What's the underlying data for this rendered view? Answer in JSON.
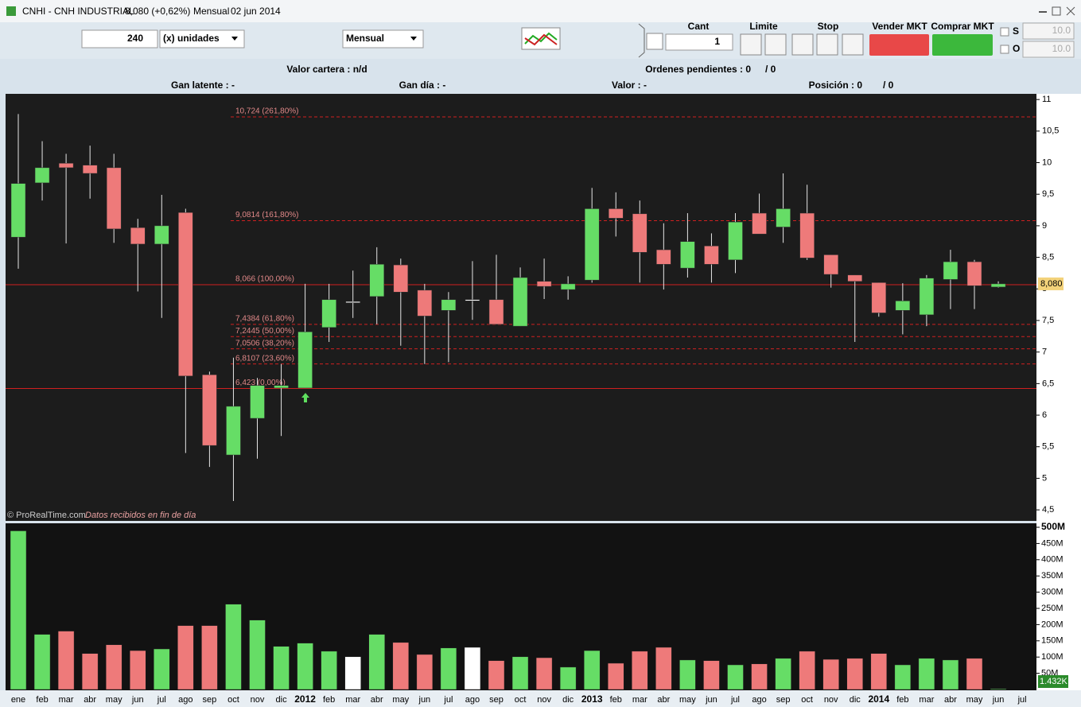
{
  "window": {
    "symbol": "CNHI - CNH INDUSTRIAL",
    "quote": "8,080 (+0,62%)",
    "period": "Mensual",
    "date": "02 jun 2014"
  },
  "toolbar": {
    "quantity": "240",
    "unit": "(x) unidades",
    "period": "Mensual",
    "cant_label": "Cant",
    "cant": "1",
    "limit_label": "Limite",
    "stop_label": "Stop",
    "sell": "Vender MKT",
    "buy": "Comprar MKT",
    "s_label": "S",
    "s_value": "10.0",
    "o_label": "O",
    "o_value": "10.0"
  },
  "info": {
    "portfolio": "Valor cartera : n/d",
    "pending": "Ordenes pendientes : 0",
    "pending_total": "/ 0",
    "unrealized": "Gan latente : -",
    "day_gain": "Gan día : -",
    "value": "Valor : -",
    "position": "Posición : 0",
    "position_total": "/ 0"
  },
  "chart_data": [
    {
      "type": "candlestick",
      "categories": [
        "ene",
        "feb",
        "mar",
        "abr",
        "may",
        "jun",
        "jul",
        "ago",
        "sep",
        "oct",
        "nov",
        "dic",
        "2012",
        "feb",
        "mar",
        "abr",
        "may",
        "jun",
        "jul",
        "ago",
        "sep",
        "oct",
        "nov",
        "dic",
        "2013",
        "feb",
        "mar",
        "abr",
        "may",
        "jun",
        "jul",
        "ago",
        "sep",
        "oct",
        "nov",
        "dic",
        "2014",
        "feb",
        "mar",
        "abr",
        "may",
        "jun",
        "jul"
      ],
      "open": [
        8.82,
        9.68,
        9.99,
        9.96,
        9.92,
        8.97,
        8.71,
        9.21,
        6.64,
        5.37,
        5.95,
        6.43,
        6.43,
        7.39,
        7.8,
        7.88,
        8.38,
        7.98,
        7.66,
        7.83,
        7.83,
        7.41,
        8.12,
        7.99,
        8.14,
        9.27,
        9.19,
        8.62,
        8.33,
        8.68,
        8.46,
        9.2,
        8.98,
        9.2,
        8.54,
        8.22,
        8.1,
        7.66,
        7.59,
        8.15,
        8.43,
        8.03,
        null
      ],
      "high": [
        10.77,
        10.34,
        10.14,
        10.27,
        10.14,
        9.11,
        9.49,
        9.27,
        6.69,
        6.91,
        6.59,
        6.81,
        8.08,
        8.08,
        8.29,
        8.66,
        8.48,
        8.08,
        7.95,
        8.44,
        8.54,
        8.34,
        8.48,
        8.2,
        9.6,
        9.53,
        9.4,
        9.04,
        9.2,
        8.88,
        9.2,
        9.51,
        9.83,
        9.65,
        8.54,
        8.22,
        8.1,
        8.09,
        8.22,
        8.62,
        8.46,
        8.12,
        null
      ],
      "low": [
        8.32,
        9.4,
        8.72,
        9.43,
        8.73,
        7.96,
        7.54,
        5.4,
        5.18,
        4.64,
        5.31,
        5.67,
        6.43,
        7.16,
        7.54,
        7.44,
        7.1,
        6.81,
        6.84,
        7.51,
        7.44,
        7.41,
        7.84,
        7.83,
        8.1,
        8.83,
        8.1,
        7.99,
        8.18,
        8.1,
        8.25,
        8.87,
        8.73,
        8.46,
        8.02,
        7.16,
        7.56,
        7.28,
        7.41,
        7.68,
        7.68,
        8.02,
        null
      ],
      "close": [
        9.67,
        9.92,
        9.92,
        9.83,
        8.95,
        8.71,
        9.0,
        6.62,
        5.52,
        6.14,
        6.47,
        6.47,
        7.32,
        7.83,
        7.8,
        8.39,
        7.95,
        7.57,
        7.83,
        7.83,
        7.44,
        8.18,
        8.04,
        8.08,
        9.27,
        9.12,
        8.58,
        8.39,
        8.75,
        8.39,
        9.06,
        8.87,
        9.27,
        8.49,
        8.23,
        8.12,
        7.62,
        7.81,
        8.17,
        8.43,
        8.05,
        8.08,
        null
      ],
      "up_color": "#66dd66",
      "down_color": "#ee7a7a",
      "flat_color": "#ffffff",
      "level_color": "#d02020",
      "ylim": [
        4.325,
        11.09
      ],
      "yticks": [
        {
          "value": 4.5,
          "label": "4,5"
        },
        5,
        {
          "value": 5.5,
          "label": "5,5"
        },
        6,
        {
          "value": 6.5,
          "label": "6,5"
        },
        7,
        {
          "value": 7.5,
          "label": "7,5"
        },
        8,
        {
          "value": 8.5,
          "label": "8,5"
        },
        9,
        {
          "value": 9.5,
          "label": "9,5"
        },
        10,
        {
          "value": 10.5,
          "label": "10,5"
        },
        11
      ],
      "levels": [
        {
          "value": 10.724,
          "label": "10,724 (261,80%)",
          "style": "dashed"
        },
        {
          "value": 9.0814,
          "label": "9,0814 (161,80%)",
          "style": "dashed"
        },
        {
          "value": 8.066,
          "label": "8,066 (100,00%)",
          "style": "solid"
        },
        {
          "value": 7.4384,
          "label": "7,4384 (61,80%)",
          "style": "dashed"
        },
        {
          "value": 7.2445,
          "label": "7,2445 (50,00%)",
          "style": "dashed"
        },
        {
          "value": 7.0506,
          "label": "7,0506 (38,20%)",
          "style": "dashed"
        },
        {
          "value": 6.8107,
          "label": "6,8107 (23,60%)",
          "style": "dashed"
        },
        {
          "value": 6.423,
          "label": "6,423 (0,00%)",
          "style": "solid"
        }
      ],
      "last": {
        "value": 8.08,
        "label": "8,080"
      },
      "source": "© ProRealTime.com",
      "note": "Datos recibidos en fin de día"
    },
    {
      "type": "bar",
      "values": [
        489,
        170,
        180,
        111,
        138,
        120,
        125,
        197,
        197,
        263,
        214,
        133,
        143,
        118,
        101,
        170,
        145,
        108,
        128,
        130,
        89,
        101,
        98,
        69,
        120,
        81,
        118,
        130,
        91,
        89,
        76,
        79,
        96,
        118,
        93,
        96,
        111,
        76,
        96,
        91,
        96,
        0.001432,
        null
      ],
      "last": {
        "value": 0.001432,
        "label": "1.432K"
      },
      "ylim": [
        0,
        500
      ],
      "yticks": [
        {
          "value": 50,
          "label": "50M"
        },
        {
          "value": 100,
          "label": "100M"
        },
        {
          "value": 150,
          "label": "150M"
        },
        {
          "value": 200,
          "label": "200M"
        },
        {
          "value": 250,
          "label": "250M"
        },
        {
          "value": 300,
          "label": "300M"
        },
        {
          "value": 350,
          "label": "350M"
        },
        {
          "value": 400,
          "label": "400M"
        },
        {
          "value": 450,
          "label": "450M"
        },
        {
          "value": 500,
          "label": "500M"
        }
      ]
    }
  ]
}
